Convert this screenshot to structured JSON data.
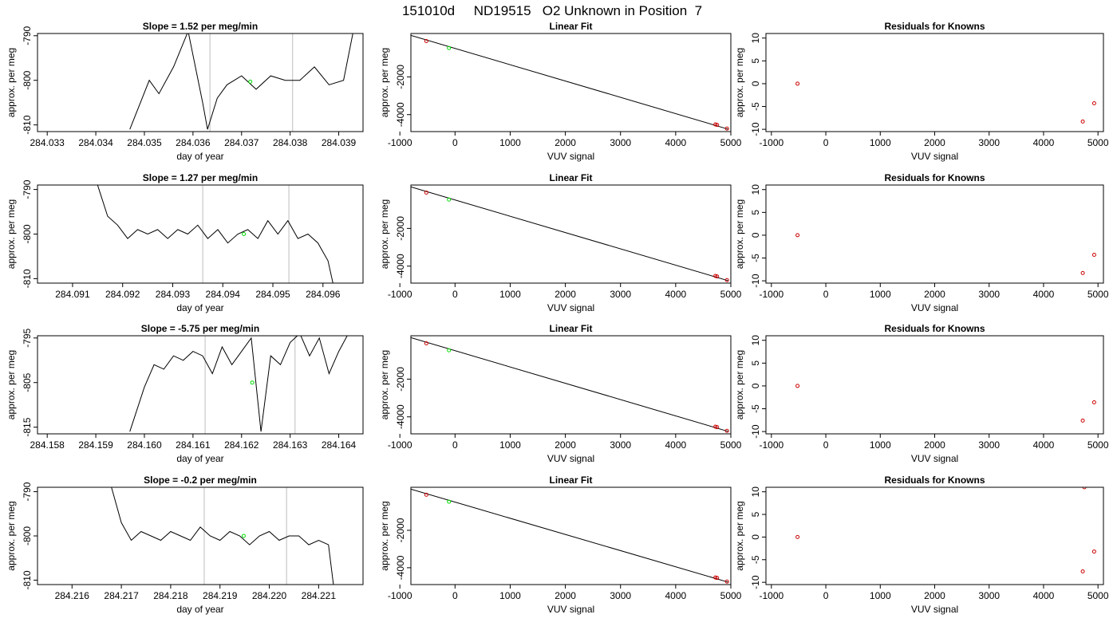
{
  "figure": {
    "title": "151010d     ND19515   O2 Unknown in Position  7"
  },
  "chart_data": [
    {
      "type": "line",
      "panel": "time",
      "row": 0,
      "title": "Slope =  1.52  per meg/min",
      "xlabel": "day of year",
      "ylabel": "approx. per meg",
      "xlim": [
        284.0328,
        284.0395
      ],
      "ylim": [
        -811.5,
        -789.5
      ],
      "xticks": [
        "284.033",
        "284.034",
        "284.035",
        "284.036",
        "284.037",
        "284.038",
        "284.039"
      ],
      "yticks": [
        "-790",
        "-800",
        "-810"
      ],
      "vlines": [
        284.03635,
        284.03805
      ],
      "marker": {
        "x": 284.03718,
        "y": -800.3
      },
      "series": [
        {
          "x": [
            284.0347,
            284.0351,
            284.0353,
            284.0356,
            284.0359,
            284.0362,
            284.0363,
            284.0365,
            284.0367,
            284.037,
            284.0373,
            284.0376,
            284.0379,
            284.0382,
            284.0385,
            284.0388,
            284.0391,
            284.0393
          ],
          "y": [
            -811,
            -800,
            -803,
            -797,
            -789,
            -805,
            -811,
            -804,
            -801,
            -799,
            -802,
            -799,
            -800,
            -800,
            -797,
            -801,
            -800,
            -789
          ]
        }
      ]
    },
    {
      "type": "line",
      "panel": "fit",
      "row": 0,
      "title": "Linear Fit",
      "xlabel": "VUV signal",
      "ylabel": "approx. per meg",
      "xlim": [
        -800,
        5000
      ],
      "ylim": [
        -4900,
        300
      ],
      "xticks": [
        "-1000",
        "0",
        "1000",
        "2000",
        "3000",
        "4000",
        "5000"
      ],
      "yticks": [
        "-2000",
        "-4000"
      ],
      "fit_line": {
        "x": [
          -800,
          4950
        ],
        "y": [
          200,
          -4770
        ]
      },
      "knowns": {
        "x": [
          -520,
          4720,
          4750,
          4930
        ],
        "y": [
          -100,
          -4520,
          -4545,
          -4740
        ]
      },
      "unknown": {
        "x": [
          -110
        ],
        "y": [
          -470
        ]
      }
    },
    {
      "type": "scatter",
      "panel": "residuals",
      "row": 0,
      "title": "Residuals for Knowns",
      "xlabel": "VUV signal",
      "ylabel": "approx. per meg",
      "xlim": [
        -1100,
        5100
      ],
      "ylim": [
        -10.5,
        11
      ],
      "xticks": [
        "-1000",
        "0",
        "1000",
        "2000",
        "3000",
        "4000",
        "5000"
      ],
      "yticks": [
        "10",
        "5",
        "0",
        "-5",
        "-10"
      ],
      "points": {
        "x": [
          -520,
          4720,
          4930
        ],
        "y": [
          0,
          -8.3,
          -4.3
        ]
      }
    },
    {
      "type": "line",
      "panel": "time",
      "row": 1,
      "title": "Slope =  1.27  per meg/min",
      "xlabel": "day of year",
      "ylabel": "approx. per meg",
      "xlim": [
        284.0903,
        284.0968
      ],
      "ylim": [
        -811,
        -789
      ],
      "xticks": [
        "284.091",
        "284.092",
        "284.093",
        "284.094",
        "284.095",
        "284.096"
      ],
      "yticks": [
        "-790",
        "-800",
        "-810"
      ],
      "vlines": [
        284.0936,
        284.09532
      ],
      "marker": {
        "x": 284.09442,
        "y": -800
      },
      "series": [
        {
          "x": [
            284.0915,
            284.0917,
            284.0919,
            284.0921,
            284.0923,
            284.0925,
            284.0927,
            284.0929,
            284.0931,
            284.0933,
            284.0935,
            284.0937,
            284.0939,
            284.0941,
            284.0943,
            284.0945,
            284.0947,
            284.0949,
            284.0951,
            284.0953,
            284.0955,
            284.0957,
            284.0959,
            284.0961,
            284.0962
          ],
          "y": [
            -789,
            -796,
            -798,
            -801,
            -799,
            -800,
            -799,
            -801,
            -799,
            -800,
            -798,
            -801,
            -799,
            -802,
            -800,
            -799,
            -801,
            -797,
            -800,
            -797,
            -801,
            -800,
            -802,
            -806,
            -811
          ]
        }
      ]
    },
    {
      "type": "line",
      "panel": "fit",
      "row": 1,
      "title": "Linear Fit",
      "xlabel": "VUV signal",
      "ylabel": "approx. per meg",
      "xlim": [
        -800,
        5000
      ],
      "ylim": [
        -4900,
        300
      ],
      "xticks": [
        "-1000",
        "0",
        "1000",
        "2000",
        "3000",
        "4000",
        "5000"
      ],
      "yticks": [
        "-2000",
        "-4000"
      ],
      "fit_line": {
        "x": [
          -800,
          4950
        ],
        "y": [
          200,
          -4770
        ]
      },
      "knowns": {
        "x": [
          -520,
          4720,
          4750,
          4930
        ],
        "y": [
          -100,
          -4520,
          -4545,
          -4740
        ]
      },
      "unknown": {
        "x": [
          -110
        ],
        "y": [
          -470
        ]
      }
    },
    {
      "type": "scatter",
      "panel": "residuals",
      "row": 1,
      "title": "Residuals for Knowns",
      "xlabel": "VUV signal",
      "ylabel": "approx. per meg",
      "xlim": [
        -1100,
        5100
      ],
      "ylim": [
        -10.5,
        11
      ],
      "xticks": [
        "-1000",
        "0",
        "1000",
        "2000",
        "3000",
        "4000",
        "5000"
      ],
      "yticks": [
        "10",
        "5",
        "0",
        "-5",
        "-10"
      ],
      "points": {
        "x": [
          -520,
          4720,
          4930
        ],
        "y": [
          0,
          -8.3,
          -4.3
        ]
      }
    },
    {
      "type": "line",
      "panel": "time",
      "row": 2,
      "title": "Slope =  -5.75  per meg/min",
      "xlabel": "day of year",
      "ylabel": "approx. per meg",
      "xlim": [
        284.1578,
        284.1645
      ],
      "ylim": [
        -816.5,
        -794.5
      ],
      "xticks": [
        "284.158",
        "284.159",
        "284.160",
        "284.161",
        "284.162",
        "284.163",
        "284.164"
      ],
      "yticks": [
        "-795",
        "-805",
        "-815"
      ],
      "vlines": [
        284.16125,
        284.1631
      ],
      "marker": {
        "x": 284.16222,
        "y": -805
      },
      "series": [
        {
          "x": [
            284.1597,
            284.16,
            284.1602,
            284.1604,
            284.1606,
            284.1608,
            284.161,
            284.1612,
            284.1614,
            284.1616,
            284.1618,
            284.162,
            284.1622,
            284.1624,
            284.1626,
            284.1628,
            284.163,
            284.1632,
            284.1634,
            284.1636,
            284.1638,
            284.164,
            284.1642
          ],
          "y": [
            -816,
            -806,
            -801,
            -802,
            -799,
            -800,
            -798,
            -799,
            -803,
            -797,
            -801,
            -798,
            -795,
            -816,
            -799,
            -801,
            -796,
            -794,
            -799,
            -795,
            -803,
            -798,
            -794
          ]
        }
      ]
    },
    {
      "type": "line",
      "panel": "fit",
      "row": 2,
      "title": "Linear Fit",
      "xlabel": "VUV signal",
      "ylabel": "approx. per meg",
      "xlim": [
        -800,
        5000
      ],
      "ylim": [
        -4900,
        300
      ],
      "xticks": [
        "-1000",
        "0",
        "1000",
        "2000",
        "3000",
        "4000",
        "5000"
      ],
      "yticks": [
        "-2000",
        "-4000"
      ],
      "fit_line": {
        "x": [
          -800,
          4950
        ],
        "y": [
          200,
          -4770
        ]
      },
      "knowns": {
        "x": [
          -520,
          4720,
          4750,
          4930
        ],
        "y": [
          -100,
          -4520,
          -4545,
          -4740
        ]
      },
      "unknown": {
        "x": [
          -110
        ],
        "y": [
          -470
        ]
      }
    },
    {
      "type": "scatter",
      "panel": "residuals",
      "row": 2,
      "title": "Residuals for Knowns",
      "xlabel": "VUV signal",
      "ylabel": "approx. per meg",
      "xlim": [
        -1100,
        5100
      ],
      "ylim": [
        -10.5,
        11
      ],
      "xticks": [
        "-1000",
        "0",
        "1000",
        "2000",
        "3000",
        "4000",
        "5000"
      ],
      "yticks": [
        "10",
        "5",
        "0",
        "-5",
        "-10"
      ],
      "points": {
        "x": [
          -520,
          4720,
          4930
        ],
        "y": [
          0,
          -7.6,
          -3.6
        ]
      }
    },
    {
      "type": "line",
      "panel": "time",
      "row": 3,
      "title": "Slope =  -0.2  per meg/min",
      "xlabel": "day of year",
      "ylabel": "approx. per meg",
      "xlim": [
        284.2153,
        284.2219
      ],
      "ylim": [
        -811,
        -789
      ],
      "xticks": [
        "284.216",
        "284.217",
        "284.218",
        "284.219",
        "284.220",
        "284.221"
      ],
      "yticks": [
        "-790",
        "-800",
        "-810"
      ],
      "vlines": [
        284.21868,
        284.22035
      ],
      "marker": {
        "x": 284.21948,
        "y": -800
      },
      "series": [
        {
          "x": [
            284.2168,
            284.217,
            284.2172,
            284.2174,
            284.2176,
            284.2178,
            284.218,
            284.2182,
            284.2184,
            284.2186,
            284.2188,
            284.219,
            284.2192,
            284.2194,
            284.2196,
            284.2198,
            284.22,
            284.2202,
            284.2204,
            284.2206,
            284.2208,
            284.221,
            284.2212,
            284.2213
          ],
          "y": [
            -789,
            -797,
            -801,
            -799,
            -800,
            -801,
            -799,
            -800,
            -801,
            -798,
            -800,
            -801,
            -799,
            -800,
            -802,
            -800,
            -799,
            -801,
            -800,
            -800,
            -802,
            -801,
            -802,
            -811
          ]
        }
      ]
    },
    {
      "type": "line",
      "panel": "fit",
      "row": 3,
      "title": "Linear Fit",
      "xlabel": "VUV signal",
      "ylabel": "approx. per meg",
      "xlim": [
        -800,
        5000
      ],
      "ylim": [
        -4900,
        300
      ],
      "xticks": [
        "-1000",
        "0",
        "1000",
        "2000",
        "3000",
        "4000",
        "5000"
      ],
      "yticks": [
        "-2000",
        "-4000"
      ],
      "fit_line": {
        "x": [
          -800,
          4950
        ],
        "y": [
          200,
          -4770
        ]
      },
      "knowns": {
        "x": [
          -520,
          4720,
          4750,
          4930
        ],
        "y": [
          -100,
          -4520,
          -4545,
          -4740
        ]
      },
      "unknown": {
        "x": [
          -110
        ],
        "y": [
          -470
        ]
      }
    },
    {
      "type": "scatter",
      "panel": "residuals",
      "row": 3,
      "title": "Residuals for Knowns",
      "xlabel": "VUV signal",
      "ylabel": "approx. per meg",
      "xlim": [
        -1100,
        5100
      ],
      "ylim": [
        -10.5,
        11
      ],
      "xticks": [
        "-1000",
        "0",
        "1000",
        "2000",
        "3000",
        "4000",
        "5000"
      ],
      "yticks": [
        "10",
        "5",
        "0",
        "-5",
        "-10"
      ],
      "points": {
        "x": [
          -520,
          4720,
          4750,
          4930
        ],
        "y": [
          0,
          -7.6,
          11,
          -3.2
        ]
      }
    }
  ],
  "colors": {
    "line": "#000000",
    "vline": "#c8c8c8",
    "known_marker": "#cc0000",
    "unknown_marker": "#00dd00"
  }
}
